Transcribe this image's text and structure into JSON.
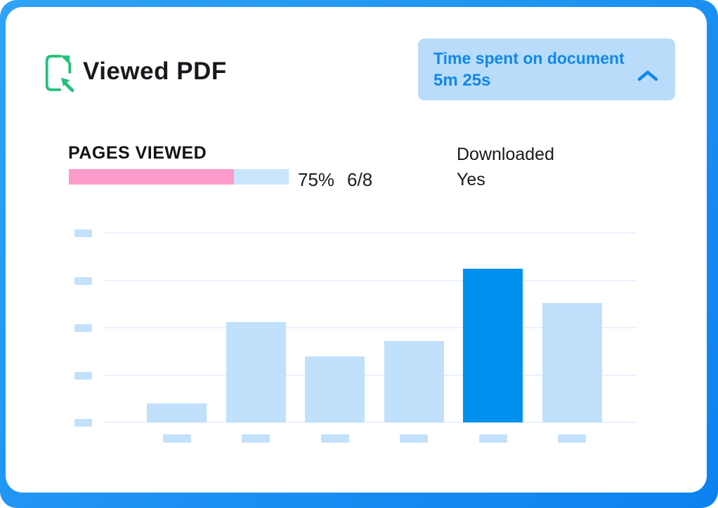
{
  "header": {
    "title": "Viewed PDF",
    "icon": "document-arrow-icon",
    "time_badge": {
      "label": "Time spent on document",
      "value": "5m 25s",
      "chevron": "chevron-up",
      "bg_color": "#b8dcf9",
      "text_color": "#1287e8"
    }
  },
  "stats": {
    "pages_viewed": {
      "label": "PAGES VIEWED",
      "percent": 75,
      "percent_text": "75%",
      "fraction_text": "6/8",
      "bar_color": "#fb9cca",
      "track_color": "#c8e5fc"
    },
    "downloaded": {
      "label": "Downloaded",
      "value": "Yes"
    }
  },
  "chart_data": {
    "type": "bar",
    "title": "",
    "xlabel": "",
    "ylabel": "",
    "categories": [
      "",
      "",
      "",
      "",
      "",
      ""
    ],
    "values_percent_of_plot_height": [
      10,
      53,
      35,
      43,
      81,
      63
    ],
    "highlighted_bar_index": 4,
    "gridline_count": 5,
    "axis_labels": "placeholder-blocks-no-text",
    "legend": "none",
    "colors": {
      "bar": "#c0e0fc",
      "bar_highlight": "#0090f0",
      "gridline": "#eaf2fc",
      "tick_placeholder": "#c3e1fb"
    }
  },
  "theme": {
    "page_gradient_start": "#2fa3f7",
    "page_gradient_end": "#0c82ef",
    "card_bg": "#ffffff",
    "icon_green": "#25c178",
    "text_dark": "#17191d"
  }
}
